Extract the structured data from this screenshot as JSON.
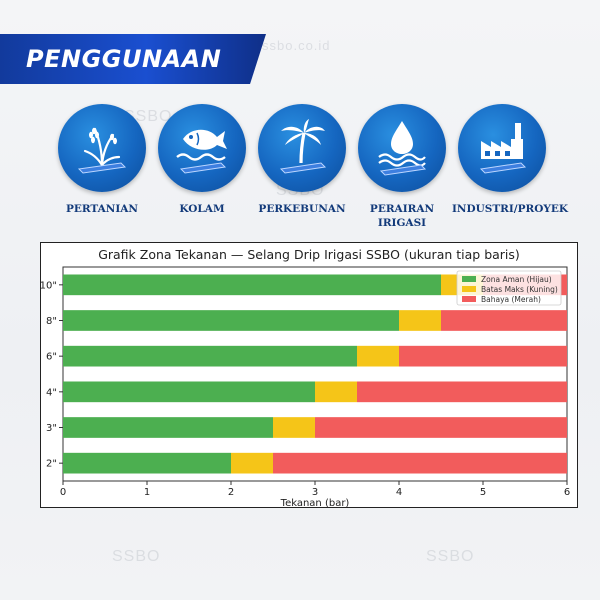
{
  "watermarks": [
    "ssbo.co.id",
    "SSBO",
    "SSBO",
    "SSBO",
    "SSBO"
  ],
  "banner": {
    "title": "PENGGUNAAN"
  },
  "uses": [
    {
      "label": "PERTANIAN",
      "icon": "rice-plant-icon"
    },
    {
      "label": "KOLAM",
      "icon": "fish-icon"
    },
    {
      "label": "PERKEBUNAN",
      "icon": "palm-tree-icon"
    },
    {
      "label": "PERAIRAN IRIGASI",
      "icon": "water-drop-icon"
    },
    {
      "label": "INDUSTRI/PROYEK",
      "icon": "factory-icon"
    }
  ],
  "colors": {
    "safe": "#4caf50",
    "limit": "#f5c518",
    "danger": "#f25c5c",
    "icon_bg": "#1566c0",
    "banner": "#1a4fd0"
  },
  "chart_data": {
    "type": "bar",
    "orientation": "horizontal",
    "stacked": true,
    "title": "Grafik Zona Tekanan — Selang Drip Irigasi SSBO (ukuran tiap baris)",
    "xlabel": "Tekanan (bar)",
    "ylabel": "",
    "xlim": [
      0,
      6
    ],
    "xticks": [
      "0",
      "1",
      "2",
      "3",
      "4",
      "5",
      "6"
    ],
    "categories": [
      "10\"",
      "8\"",
      "6\"",
      "4\"",
      "3\"",
      "2\""
    ],
    "series": [
      {
        "name": "Zona Aman (Hijau)",
        "values": [
          4.5,
          4.0,
          3.5,
          3.0,
          2.5,
          2.0
        ]
      },
      {
        "name": "Batas Maks (Kuning)",
        "values": [
          0.5,
          0.5,
          0.5,
          0.5,
          0.5,
          0.5
        ]
      },
      {
        "name": "Bahaya (Merah)",
        "values": [
          1.0,
          1.5,
          2.0,
          2.5,
          3.0,
          3.5
        ]
      }
    ],
    "legend_position": "top-right",
    "grid": false
  }
}
